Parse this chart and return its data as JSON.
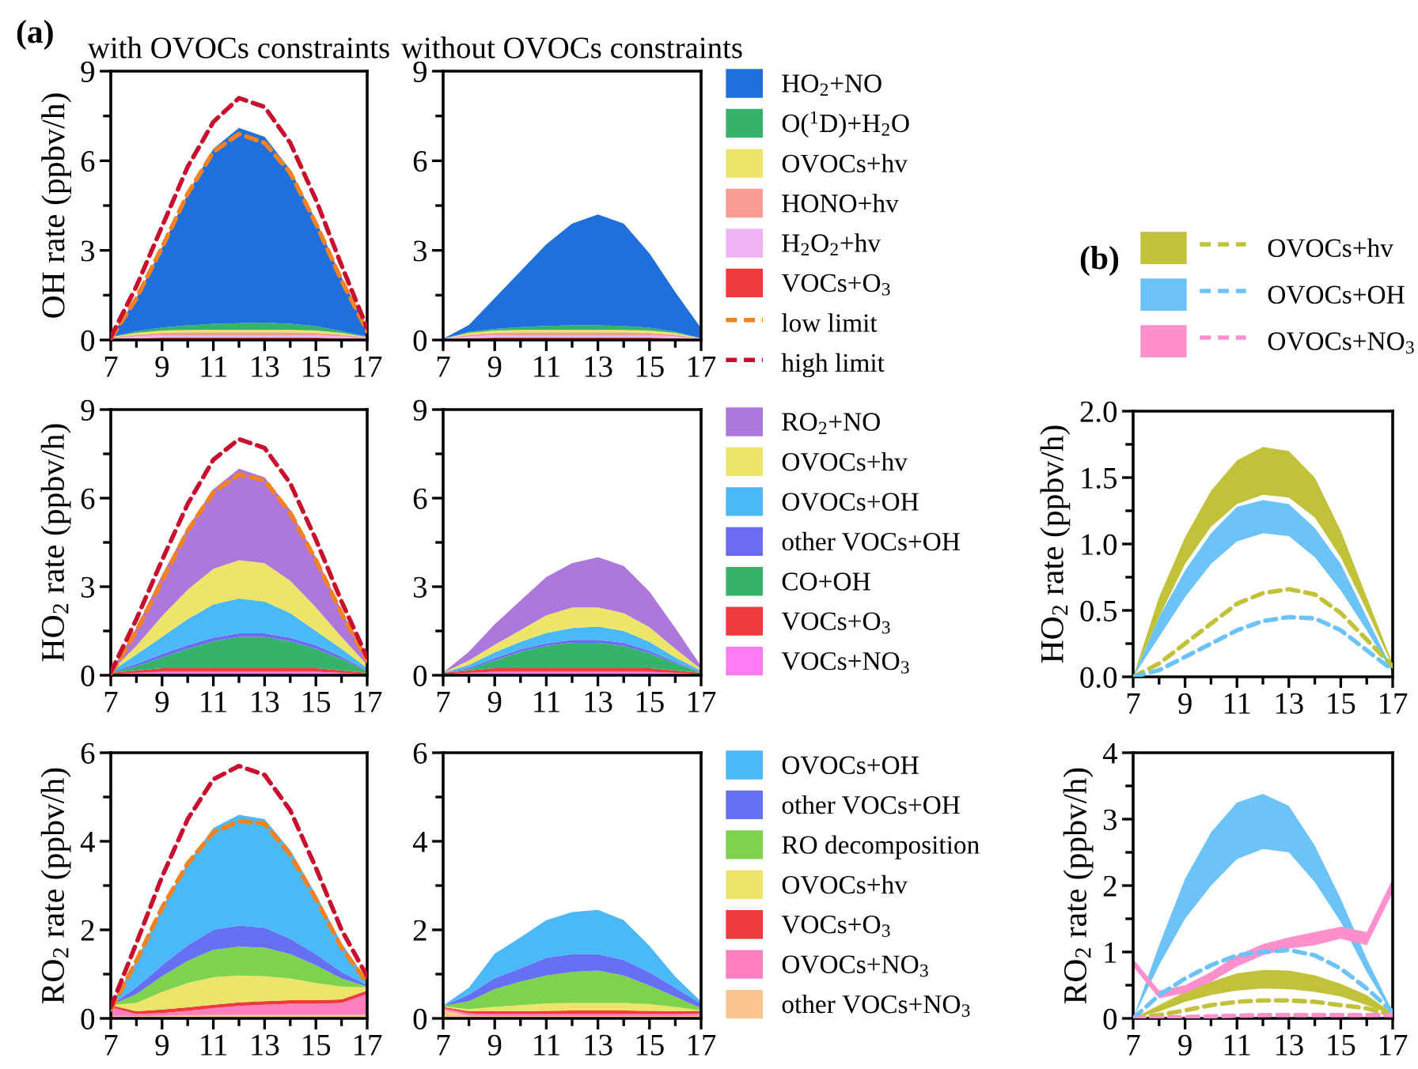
{
  "chart_data": [
    {
      "type": "area",
      "stacked": true,
      "title": "with OVOCs constraints",
      "ylabel": "OH rate (ppbv/h)",
      "annotations": [
        "(a)"
      ],
      "legend": "right",
      "x": [
        7,
        8,
        9,
        10,
        11,
        12,
        13,
        14,
        15,
        16,
        17
      ],
      "xlim": [
        7,
        17
      ],
      "xticks": [
        7,
        {
          "value": 8,
          "label": null
        },
        9,
        {
          "value": 10,
          "label": null
        },
        11,
        {
          "value": 12,
          "label": null
        },
        13,
        {
          "value": 14,
          "label": null
        },
        15,
        {
          "value": 16,
          "label": null
        },
        17
      ],
      "ylim": [
        0,
        9
      ],
      "yticks": [
        0,
        {
          "value": 1.5,
          "label": null
        },
        3,
        {
          "value": 4.5,
          "label": null
        },
        6,
        {
          "value": 7.5,
          "label": null
        },
        9
      ],
      "series": [
        {
          "name": "VOCs+O$_{3}$",
          "color": "#ee3b3b",
          "values": [
            0.04,
            0.06,
            0.08,
            0.08,
            0.08,
            0.08,
            0.08,
            0.08,
            0.08,
            0.06,
            0.04
          ]
        },
        {
          "name": "H$_{2}$O$_{2}$+hv",
          "color": "#efb3f5",
          "values": [
            0.02,
            0.06,
            0.08,
            0.08,
            0.08,
            0.08,
            0.08,
            0.08,
            0.08,
            0.06,
            0.02
          ]
        },
        {
          "name": "HONO+hv",
          "color": "#f89c94",
          "values": [
            0.03,
            0.06,
            0.08,
            0.1,
            0.1,
            0.1,
            0.1,
            0.1,
            0.08,
            0.06,
            0.03
          ]
        },
        {
          "name": "OVOCs+hv",
          "color": "#ede46a",
          "values": [
            0.01,
            0.06,
            0.08,
            0.08,
            0.08,
            0.08,
            0.08,
            0.08,
            0.08,
            0.06,
            0.01
          ]
        },
        {
          "name": "O($^{1}$D)+H$_{2}$O",
          "color": "#36b36a",
          "values": [
            0,
            0.05,
            0.1,
            0.15,
            0.2,
            0.22,
            0.24,
            0.2,
            0.14,
            0.06,
            0.01
          ]
        },
        {
          "name": "HO$_{2}$+NO",
          "color": "#1f6fdc",
          "values": [
            0,
            1.11,
            2.68,
            4.41,
            5.86,
            6.54,
            6.22,
            5.16,
            3.54,
            1.8,
            0.29
          ]
        },
        {
          "name": "low limit",
          "type": "line",
          "line_style": "dashed",
          "color": "#f58220",
          "values": [
            0.05,
            1.4,
            3.1,
            4.9,
            6.3,
            6.9,
            6.6,
            5.6,
            3.9,
            2.0,
            0.3
          ]
        },
        {
          "name": "high limit",
          "type": "line",
          "line_style": "dashed",
          "color": "#c8102e",
          "values": [
            0.1,
            1.8,
            3.8,
            5.8,
            7.3,
            8.1,
            7.8,
            6.6,
            4.7,
            2.5,
            0.4
          ]
        }
      ]
    },
    {
      "type": "area",
      "stacked": true,
      "title": "without OVOCs constraints",
      "x": [
        7,
        8,
        9,
        10,
        11,
        12,
        13,
        14,
        15,
        16,
        17
      ],
      "xlim": [
        7,
        17
      ],
      "xticks": [
        7,
        {
          "value": 8,
          "label": null
        },
        9,
        {
          "value": 10,
          "label": null
        },
        11,
        {
          "value": 12,
          "label": null
        },
        13,
        {
          "value": 14,
          "label": null
        },
        15,
        {
          "value": 16,
          "label": null
        },
        17
      ],
      "ylim": [
        0,
        9
      ],
      "yticks": [
        0,
        {
          "value": 1.5,
          "label": null
        },
        3,
        {
          "value": 4.5,
          "label": null
        },
        6,
        {
          "value": 7.5,
          "label": null
        },
        9
      ],
      "series": [
        {
          "color": "#ee3b3b",
          "values": [
            0.02,
            0.06,
            0.08,
            0.08,
            0.08,
            0.08,
            0.08,
            0.08,
            0.08,
            0.06,
            0.02
          ]
        },
        {
          "color": "#efb3f5",
          "values": [
            0.01,
            0.06,
            0.08,
            0.08,
            0.08,
            0.08,
            0.08,
            0.08,
            0.08,
            0.06,
            0.01
          ]
        },
        {
          "color": "#f89c94",
          "values": [
            0.01,
            0.06,
            0.08,
            0.1,
            0.1,
            0.1,
            0.1,
            0.1,
            0.08,
            0.06,
            0.02
          ]
        },
        {
          "color": "#ede46a",
          "values": [
            0,
            0.06,
            0.08,
            0.08,
            0.08,
            0.08,
            0.08,
            0.08,
            0.08,
            0.06,
            0
          ]
        },
        {
          "color": "#36b36a",
          "values": [
            0,
            0.03,
            0.05,
            0.09,
            0.13,
            0.15,
            0.15,
            0.13,
            0.09,
            0.04,
            0.01
          ]
        },
        {
          "color": "#1f6fdc",
          "values": [
            0,
            0.23,
            1.03,
            1.87,
            2.73,
            3.41,
            3.71,
            3.43,
            2.49,
            1.32,
            0.34
          ]
        }
      ]
    },
    {
      "type": "area",
      "stacked": true,
      "ylabel": "HO$_{2}$ rate (ppbv/h)",
      "legend": "right",
      "x": [
        7,
        8,
        9,
        10,
        11,
        12,
        13,
        14,
        15,
        16,
        17
      ],
      "xlim": [
        7,
        17
      ],
      "xticks": [
        7,
        {
          "value": 8,
          "label": null
        },
        9,
        {
          "value": 10,
          "label": null
        },
        11,
        {
          "value": 12,
          "label": null
        },
        13,
        {
          "value": 14,
          "label": null
        },
        15,
        {
          "value": 16,
          "label": null
        },
        17
      ],
      "ylim": [
        0,
        9
      ],
      "yticks": [
        0,
        {
          "value": 1.5,
          "label": null
        },
        3,
        {
          "value": 4.5,
          "label": null
        },
        6,
        {
          "value": 7.5,
          "label": null
        },
        9
      ],
      "series": [
        {
          "name": "VOCs+NO$_{3}$",
          "color": "#ff7cf5",
          "values": [
            0.04,
            0.08,
            0.12,
            0.12,
            0.12,
            0.12,
            0.12,
            0.12,
            0.12,
            0.08,
            0.04
          ]
        },
        {
          "name": "VOCs+O$_{3}$",
          "color": "#ee3b3b",
          "values": [
            0.04,
            0.08,
            0.12,
            0.12,
            0.12,
            0.12,
            0.12,
            0.12,
            0.12,
            0.08,
            0.04
          ]
        },
        {
          "name": "CO+OH",
          "color": "#36b36a",
          "values": [
            0,
            0.14,
            0.36,
            0.66,
            0.91,
            1.06,
            1.06,
            0.91,
            0.66,
            0.39,
            0.07
          ]
        },
        {
          "name": "other VOCs+OH",
          "color": "#6b6cf2",
          "values": [
            0.02,
            0.08,
            0.12,
            0.12,
            0.12,
            0.12,
            0.12,
            0.12,
            0.12,
            0.08,
            0.02
          ]
        },
        {
          "name": "OVOCs+OH",
          "color": "#4bb8f8",
          "values": [
            0.02,
            0.32,
            0.58,
            0.88,
            1.13,
            1.18,
            1.08,
            0.83,
            0.48,
            0.27,
            0.08
          ]
        },
        {
          "name": "OVOCs+hv",
          "color": "#ede46a",
          "values": [
            0,
            0.3,
            0.7,
            1.0,
            1.2,
            1.3,
            1.3,
            1.1,
            0.8,
            0.4,
            0.1
          ]
        },
        {
          "name": "RO$_{2}$+NO",
          "color": "#ad77dc",
          "values": [
            0,
            0.6,
            1.4,
            2.1,
            2.7,
            3.1,
            2.9,
            2.4,
            1.7,
            0.9,
            0.15
          ]
        },
        {
          "type": "line",
          "line_style": "dashed",
          "color": "#f58220",
          "values": [
            0.05,
            1.5,
            3.2,
            4.9,
            6.2,
            6.8,
            6.6,
            5.5,
            3.9,
            2.1,
            0.5
          ]
        },
        {
          "type": "line",
          "line_style": "dashed",
          "color": "#c8102e",
          "values": [
            0.1,
            1.9,
            3.9,
            5.8,
            7.3,
            8.0,
            7.7,
            6.5,
            4.6,
            2.5,
            0.6
          ]
        }
      ]
    },
    {
      "type": "area",
      "stacked": true,
      "x": [
        7,
        8,
        9,
        10,
        11,
        12,
        13,
        14,
        15,
        16,
        17
      ],
      "xlim": [
        7,
        17
      ],
      "xticks": [
        7,
        {
          "value": 8,
          "label": null
        },
        9,
        {
          "value": 10,
          "label": null
        },
        11,
        {
          "value": 12,
          "label": null
        },
        13,
        {
          "value": 14,
          "label": null
        },
        15,
        {
          "value": 16,
          "label": null
        },
        17
      ],
      "ylim": [
        0,
        9
      ],
      "yticks": [
        0,
        {
          "value": 1.5,
          "label": null
        },
        3,
        {
          "value": 4.5,
          "label": null
        },
        6,
        {
          "value": 7.5,
          "label": null
        },
        9
      ],
      "series": [
        {
          "color": "#ff7cf5",
          "values": [
            0.04,
            0.08,
            0.12,
            0.12,
            0.12,
            0.12,
            0.12,
            0.12,
            0.12,
            0.08,
            0.04
          ]
        },
        {
          "color": "#ee3b3b",
          "values": [
            0.04,
            0.08,
            0.12,
            0.12,
            0.12,
            0.12,
            0.12,
            0.12,
            0.12,
            0.08,
            0.04
          ]
        },
        {
          "color": "#36b36a",
          "values": [
            0,
            0.04,
            0.26,
            0.56,
            0.76,
            0.86,
            0.86,
            0.76,
            0.51,
            0.24,
            0.02
          ]
        },
        {
          "color": "#6b6cf2",
          "values": [
            0.01,
            0.05,
            0.08,
            0.08,
            0.08,
            0.1,
            0.1,
            0.1,
            0.08,
            0.05,
            0.01
          ]
        },
        {
          "color": "#4bb8f8",
          "values": [
            0,
            0.1,
            0.2,
            0.25,
            0.35,
            0.4,
            0.45,
            0.4,
            0.3,
            0.15,
            0.05
          ]
        },
        {
          "color": "#ede46a",
          "values": [
            0,
            0.15,
            0.25,
            0.4,
            0.6,
            0.7,
            0.65,
            0.6,
            0.5,
            0.3,
            0.05
          ]
        },
        {
          "color": "#ad77dc",
          "values": [
            0,
            0.3,
            0.7,
            1.0,
            1.3,
            1.5,
            1.7,
            1.6,
            1.2,
            0.7,
            0.1
          ]
        }
      ]
    },
    {
      "type": "area",
      "stacked": true,
      "ylabel": "RO$_{2}$ rate (ppbv/h)",
      "legend": "right",
      "x": [
        7,
        8,
        9,
        10,
        11,
        12,
        13,
        14,
        15,
        16,
        17
      ],
      "xlim": [
        7,
        17
      ],
      "xticks": [
        7,
        {
          "value": 8,
          "label": null
        },
        9,
        {
          "value": 10,
          "label": null
        },
        11,
        {
          "value": 12,
          "label": null
        },
        13,
        {
          "value": 14,
          "label": null
        },
        15,
        {
          "value": 16,
          "label": null
        },
        17
      ],
      "ylim": [
        0,
        6
      ],
      "yticks": [
        0,
        {
          "value": 1,
          "label": null
        },
        2,
        {
          "value": 3,
          "label": null
        },
        4,
        {
          "value": 5,
          "label": null
        },
        6
      ],
      "series": [
        {
          "name": "other VOCs+NO$_{3}$",
          "color": "#fcc590",
          "values": [
            0.05,
            0.05,
            0.06,
            0.07,
            0.08,
            0.08,
            0.08,
            0.08,
            0.08,
            0.08,
            0.08
          ]
        },
        {
          "name": "OVOCs+NO$_{3}$",
          "color": "#fd7fc0",
          "values": [
            0.2,
            0.05,
            0.06,
            0.1,
            0.15,
            0.2,
            0.23,
            0.25,
            0.25,
            0.27,
            0.47
          ]
        },
        {
          "name": "VOCs+O$_{3}$",
          "color": "#ee3b3b",
          "values": [
            0.05,
            0.06,
            0.08,
            0.08,
            0.08,
            0.08,
            0.08,
            0.08,
            0.08,
            0.08,
            0.08
          ]
        },
        {
          "name": "OVOCs+hv",
          "color": "#ede46a",
          "values": [
            0,
            0.19,
            0.4,
            0.55,
            0.62,
            0.61,
            0.56,
            0.49,
            0.39,
            0.29,
            0.07
          ]
        },
        {
          "name": "RO decomposition",
          "color": "#7ed24e",
          "values": [
            0,
            0.2,
            0.35,
            0.5,
            0.62,
            0.65,
            0.65,
            0.55,
            0.4,
            0.18,
            0.02
          ]
        },
        {
          "name": "other VOCs+OH",
          "color": "#6670f3",
          "values": [
            0,
            0.15,
            0.25,
            0.35,
            0.45,
            0.48,
            0.45,
            0.35,
            0.25,
            0.15,
            0.03
          ]
        },
        {
          "name": "OVOCs+OH",
          "color": "#4bb8f8",
          "values": [
            0,
            0.6,
            1.3,
            1.85,
            2.3,
            2.5,
            2.45,
            2.0,
            1.35,
            0.65,
            0.1
          ]
        },
        {
          "type": "line",
          "line_style": "dashed",
          "color": "#f58220",
          "values": [
            0.2,
            1.3,
            2.5,
            3.5,
            4.2,
            4.45,
            4.4,
            3.7,
            2.7,
            1.6,
            0.8
          ]
        },
        {
          "type": "line",
          "line_style": "dashed",
          "color": "#c8102e",
          "values": [
            0.25,
            1.7,
            3.2,
            4.5,
            5.4,
            5.7,
            5.5,
            4.7,
            3.4,
            2.0,
            0.95
          ]
        }
      ]
    },
    {
      "type": "area",
      "stacked": true,
      "x": [
        7,
        8,
        9,
        10,
        11,
        12,
        13,
        14,
        15,
        16,
        17
      ],
      "xlim": [
        7,
        17
      ],
      "xticks": [
        7,
        {
          "value": 8,
          "label": null
        },
        9,
        {
          "value": 10,
          "label": null
        },
        11,
        {
          "value": 12,
          "label": null
        },
        13,
        {
          "value": 14,
          "label": null
        },
        15,
        {
          "value": 16,
          "label": null
        },
        17
      ],
      "ylim": [
        0,
        6
      ],
      "yticks": [
        0,
        {
          "value": 1,
          "label": null
        },
        2,
        {
          "value": 3,
          "label": null
        },
        4,
        {
          "value": 5,
          "label": null
        },
        6
      ],
      "series": [
        {
          "color": "#fcc590",
          "values": [
            0.2,
            0.06,
            0.05,
            0.05,
            0.05,
            0.05,
            0.05,
            0.05,
            0.05,
            0.05,
            0.06
          ]
        },
        {
          "color": "#fd7fc0",
          "values": [
            0.03,
            0.05,
            0.05,
            0.05,
            0.05,
            0.05,
            0.05,
            0.05,
            0.05,
            0.05,
            0.05
          ]
        },
        {
          "color": "#ee3b3b",
          "values": [
            0.03,
            0.05,
            0.06,
            0.06,
            0.07,
            0.08,
            0.08,
            0.08,
            0.07,
            0.06,
            0.06
          ]
        },
        {
          "color": "#ede46a",
          "values": [
            0.01,
            0.05,
            0.1,
            0.14,
            0.17,
            0.17,
            0.17,
            0.17,
            0.15,
            0.1,
            0.01
          ]
        },
        {
          "color": "#7ed24e",
          "values": [
            0.01,
            0.18,
            0.4,
            0.53,
            0.63,
            0.7,
            0.73,
            0.62,
            0.42,
            0.23,
            0.05
          ]
        },
        {
          "color": "#6670f3",
          "values": [
            0,
            0.15,
            0.25,
            0.3,
            0.4,
            0.4,
            0.37,
            0.35,
            0.3,
            0.2,
            0.1
          ]
        },
        {
          "color": "#4bb8f8",
          "values": [
            0.01,
            0.15,
            0.55,
            0.7,
            0.85,
            0.95,
            1.0,
            0.9,
            0.6,
            0.25,
            0.05
          ]
        }
      ]
    },
    {
      "type": "line",
      "line_style": "dashed",
      "ylabel": "HO$_{2}$ rate (ppbv/h)",
      "annotations": [
        "(b)"
      ],
      "x": [
        7,
        8,
        9,
        10,
        11,
        12,
        13,
        14,
        15,
        16,
        17
      ],
      "xlim": [
        7,
        17
      ],
      "xticks": [
        7,
        {
          "value": 8,
          "label": null
        },
        9,
        {
          "value": 10,
          "label": null
        },
        11,
        {
          "value": 12,
          "label": null
        },
        13,
        {
          "value": 14,
          "label": null
        },
        15,
        {
          "value": 16,
          "label": null
        },
        17
      ],
      "ylim": [
        0,
        2
      ],
      "yticks": [
        {
          "value": 0,
          "label": "0.0"
        },
        {
          "value": 0.25,
          "label": null
        },
        {
          "value": 0.5,
          "label": "0.5"
        },
        {
          "value": 0.75,
          "label": null
        },
        {
          "value": 1,
          "label": "1.0"
        },
        {
          "value": 1.25,
          "label": null
        },
        {
          "value": 1.5,
          "label": "1.5"
        },
        {
          "value": 1.75,
          "label": null
        },
        {
          "value": 2,
          "label": "2.0"
        }
      ],
      "series": [
        {
          "color": "#c2c23a",
          "values": [
            0,
            0.1,
            0.25,
            0.4,
            0.55,
            0.63,
            0.66,
            0.62,
            0.48,
            0.28,
            0.08
          ],
          "lower": [
            0,
            0.45,
            0.85,
            1.13,
            1.3,
            1.37,
            1.35,
            1.2,
            0.9,
            0.5,
            0.08
          ],
          "upper": [
            0,
            0.6,
            1.05,
            1.4,
            1.63,
            1.73,
            1.7,
            1.5,
            1.1,
            0.6,
            0.1
          ]
        },
        {
          "color": "#6cc3f8",
          "values": [
            0,
            0.05,
            0.15,
            0.25,
            0.35,
            0.42,
            0.45,
            0.44,
            0.35,
            0.2,
            0.05
          ],
          "lower": [
            0,
            0.3,
            0.6,
            0.85,
            1.02,
            1.08,
            1.06,
            0.9,
            0.65,
            0.35,
            0.03
          ],
          "upper": [
            0,
            0.45,
            0.8,
            1.08,
            1.28,
            1.33,
            1.3,
            1.12,
            0.85,
            0.45,
            0.05
          ]
        }
      ]
    },
    {
      "type": "line",
      "line_style": "dashed",
      "ylabel": "RO$_{2}$ rate (ppbv/h)",
      "legend": "top",
      "x": [
        7,
        8,
        9,
        10,
        11,
        12,
        13,
        14,
        15,
        16,
        17
      ],
      "xlim": [
        7,
        17
      ],
      "xticks": [
        7,
        {
          "value": 8,
          "label": null
        },
        9,
        {
          "value": 10,
          "label": null
        },
        11,
        {
          "value": 12,
          "label": null
        },
        13,
        {
          "value": 14,
          "label": null
        },
        15,
        {
          "value": 16,
          "label": null
        },
        17
      ],
      "ylim": [
        0,
        4
      ],
      "yticks": [
        0,
        {
          "value": 0.5,
          "label": null
        },
        1,
        {
          "value": 1.5,
          "label": null
        },
        2,
        {
          "value": 2.5,
          "label": null
        },
        3,
        {
          "value": 3.5,
          "label": null
        },
        4
      ],
      "series": [
        {
          "name": "OVOCs+hv",
          "color": "#c2c23a",
          "values": [
            0,
            0.05,
            0.12,
            0.2,
            0.25,
            0.27,
            0.27,
            0.25,
            0.2,
            0.15,
            0.05
          ],
          "lower": [
            0,
            0.1,
            0.25,
            0.35,
            0.42,
            0.45,
            0.44,
            0.4,
            0.33,
            0.2,
            0.05
          ],
          "upper": [
            0,
            0.2,
            0.4,
            0.55,
            0.68,
            0.73,
            0.72,
            0.65,
            0.52,
            0.35,
            0.08
          ]
        },
        {
          "name": "OVOCs+OH",
          "color": "#6cc3f8",
          "values": [
            0,
            0.35,
            0.6,
            0.8,
            0.95,
            1.0,
            1.03,
            0.95,
            0.75,
            0.45,
            0.1
          ],
          "lower": [
            0,
            0.8,
            1.5,
            2.0,
            2.4,
            2.55,
            2.5,
            2.05,
            1.45,
            0.7,
            0.05
          ],
          "upper": [
            0,
            1.1,
            2.1,
            2.8,
            3.25,
            3.38,
            3.2,
            2.6,
            1.8,
            0.9,
            0.1
          ]
        },
        {
          "name": "OVOCs+NO$_{3}$",
          "color": "#ff8fcd",
          "values": [
            0,
            0.01,
            0.02,
            0.03,
            0.04,
            0.05,
            0.05,
            0.05,
            0.05,
            0.05,
            0.05
          ],
          "lower": [
            0.78,
            0.3,
            0.38,
            0.55,
            0.78,
            0.95,
            1.05,
            1.1,
            1.2,
            1.1,
            1.9
          ],
          "upper": [
            0.9,
            0.42,
            0.5,
            0.7,
            0.95,
            1.12,
            1.22,
            1.3,
            1.38,
            1.3,
            2.1
          ]
        }
      ]
    }
  ]
}
